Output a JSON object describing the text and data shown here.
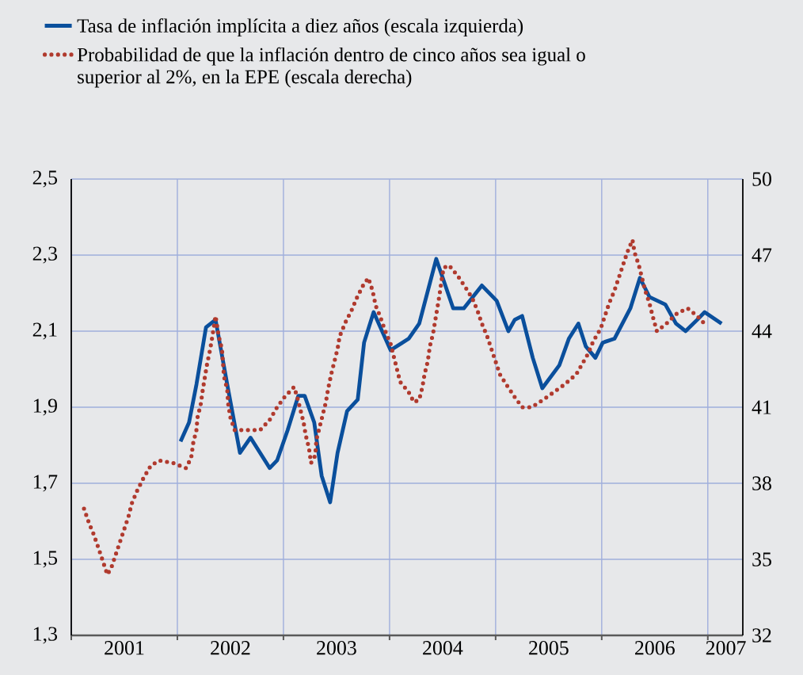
{
  "chart_data": {
    "type": "line",
    "xlim": [
      2001,
      2007.33
    ],
    "xticks": [
      {
        "value": 2001,
        "label": null
      },
      {
        "value": 2002,
        "label": null
      },
      {
        "value": 2003,
        "label": null
      },
      {
        "value": 2004,
        "label": null
      },
      {
        "value": 2005,
        "label": null
      },
      {
        "value": 2006,
        "label": null
      },
      {
        "value": 2007,
        "label": null
      },
      {
        "value": 2001.5,
        "label": "2001"
      },
      {
        "value": 2002.5,
        "label": "2002"
      },
      {
        "value": 2003.5,
        "label": "2003"
      },
      {
        "value": 2004.5,
        "label": "2004"
      },
      {
        "value": 2005.5,
        "label": "2005"
      },
      {
        "value": 2006.5,
        "label": "2006"
      },
      {
        "value": 2007.17,
        "label": "2007"
      }
    ],
    "ylim": [
      1.3,
      2.5
    ],
    "yticks": [
      {
        "value": 1.3,
        "label": "1,3"
      },
      {
        "value": 1.5,
        "label": "1,5"
      },
      {
        "value": 1.7,
        "label": "1,7"
      },
      {
        "value": 1.9,
        "label": "1,9"
      },
      {
        "value": 2.1,
        "label": "2,1"
      },
      {
        "value": 2.3,
        "label": "2,3"
      },
      {
        "value": 2.5,
        "label": "2,5"
      }
    ],
    "y2lim": [
      32,
      50
    ],
    "y2ticks": [
      32,
      35,
      38,
      41,
      44,
      47,
      50
    ],
    "grid": true,
    "legend": "top",
    "marker": "none",
    "series": [
      {
        "name": "Tasa de inflación implícita a diez años (escala izquierda)",
        "color": "#0a4f9c",
        "line_style": "solid",
        "axis": "y",
        "x": [
          2002.03,
          2002.11,
          2002.18,
          2002.27,
          2002.36,
          2002.47,
          2002.59,
          2002.69,
          2002.87,
          2002.94,
          2003.04,
          2003.14,
          2003.2,
          2003.29,
          2003.36,
          2003.44,
          2003.51,
          2003.6,
          2003.7,
          2003.76,
          2003.85,
          2004.01,
          2004.18,
          2004.28,
          2004.44,
          2004.6,
          2004.7,
          2004.87,
          2005.01,
          2005.12,
          2005.18,
          2005.25,
          2005.35,
          2005.44,
          2005.6,
          2005.69,
          2005.78,
          2005.85,
          2005.94,
          2006.01,
          2006.12,
          2006.27,
          2006.36,
          2006.45,
          2006.6,
          2006.7,
          2006.79,
          2006.9,
          2006.97,
          2007.13
        ],
        "values": [
          1.81,
          1.86,
          1.96,
          2.11,
          2.13,
          1.96,
          1.78,
          1.82,
          1.74,
          1.76,
          1.84,
          1.93,
          1.93,
          1.86,
          1.72,
          1.65,
          1.78,
          1.89,
          1.92,
          2.07,
          2.15,
          2.05,
          2.08,
          2.12,
          2.29,
          2.16,
          2.16,
          2.22,
          2.18,
          2.1,
          2.13,
          2.14,
          2.03,
          1.95,
          2.01,
          2.08,
          2.12,
          2.06,
          2.03,
          2.07,
          2.08,
          2.16,
          2.24,
          2.19,
          2.17,
          2.12,
          2.1,
          2.13,
          2.15,
          2.12
        ]
      },
      {
        "name": "Probabilidad de que la inflación dentro de cinco años sea igual o superior al 2%, en la EPE (escala derecha)",
        "color": "#b03a2e",
        "line_style": "dotted",
        "axis": "y2",
        "x": [
          2001.12,
          2001.17,
          2001.21,
          2001.26,
          2001.3,
          2001.34,
          2001.38,
          2001.42,
          2001.46,
          2001.5,
          2001.54,
          2001.57,
          2001.62,
          2001.68,
          2001.75,
          2001.83,
          2001.96,
          2002.08,
          2002.13,
          2002.15,
          2002.18,
          2002.19,
          2002.22,
          2002.24,
          2002.26,
          2002.28,
          2002.31,
          2002.33,
          2002.36,
          2002.39,
          2002.42,
          2002.44,
          2002.47,
          2002.48,
          2002.5,
          2002.54,
          2002.67,
          2002.78,
          2002.87,
          2002.94,
          2003.01,
          2003.1,
          2003.13,
          2003.16,
          2003.19,
          2003.21,
          2003.24,
          2003.26,
          2003.3,
          2003.31,
          2003.34,
          2003.37,
          2003.4,
          2003.42,
          2003.45,
          2003.48,
          2003.51,
          2003.53,
          2003.59,
          2003.64,
          2003.69,
          2003.75,
          2003.8,
          2003.84,
          2003.87,
          2003.91,
          2003.96,
          2004.01,
          2004.1,
          2004.18,
          2004.23,
          2004.28,
          2004.31,
          2004.33,
          2004.36,
          2004.38,
          2004.41,
          2004.43,
          2004.45,
          2004.47,
          2004.49,
          2004.51,
          2004.56,
          2004.64,
          2004.72,
          2004.78,
          2004.83,
          2004.87,
          2004.92,
          2004.96,
          2005.0,
          2005.04,
          2005.1,
          2005.18,
          2005.25,
          2005.34,
          2005.45,
          2005.55,
          2005.65,
          2005.76,
          2005.87,
          2005.92,
          2005.99,
          2006.03,
          2006.07,
          2006.12,
          2006.16,
          2006.2,
          2006.24,
          2006.29,
          2006.31,
          2006.35,
          2006.38,
          2006.41,
          2006.45,
          2006.48,
          2006.52,
          2006.61,
          2006.71,
          2006.81,
          2006.9,
          2006.99
        ],
        "values": [
          37.0,
          36.4,
          36.0,
          35.4,
          34.9,
          34.4,
          34.7,
          35.2,
          35.7,
          36.2,
          36.7,
          37.2,
          37.7,
          38.2,
          38.7,
          38.9,
          38.8,
          38.6,
          39.0,
          39.6,
          40.1,
          40.6,
          41.1,
          41.7,
          42.2,
          42.7,
          43.3,
          43.8,
          44.6,
          43.8,
          43.3,
          42.2,
          41.7,
          41.1,
          40.6,
          40.1,
          40.1,
          40.1,
          40.5,
          41.0,
          41.4,
          41.8,
          41.4,
          40.9,
          40.4,
          39.9,
          39.4,
          38.8,
          39.1,
          39.7,
          40.2,
          40.7,
          41.2,
          41.7,
          42.3,
          42.8,
          43.3,
          43.8,
          44.4,
          44.8,
          45.3,
          45.8,
          46.1,
          45.6,
          45.0,
          44.6,
          44.0,
          43.5,
          42.0,
          41.6,
          41.2,
          41.3,
          41.8,
          42.3,
          42.8,
          43.4,
          43.9,
          44.4,
          44.9,
          45.4,
          46.0,
          46.5,
          46.6,
          46.2,
          45.7,
          45.3,
          44.8,
          44.3,
          43.8,
          43.3,
          42.8,
          42.3,
          41.9,
          41.4,
          41.0,
          41.0,
          41.3,
          41.6,
          41.9,
          42.3,
          43.1,
          43.6,
          44.1,
          44.6,
          45.1,
          45.6,
          46.1,
          46.6,
          47.1,
          47.6,
          47.1,
          46.6,
          46.1,
          45.6,
          45.1,
          44.6,
          44.0,
          44.3,
          44.7,
          44.9,
          44.6,
          44.2
        ]
      }
    ]
  }
}
